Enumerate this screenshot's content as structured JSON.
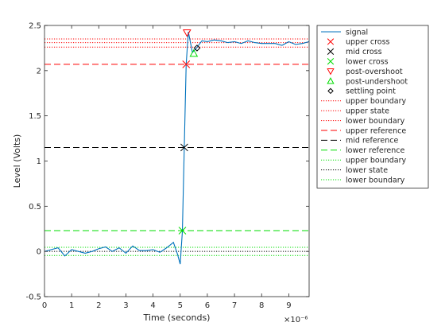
{
  "chart_data": {
    "type": "line",
    "xlabel": "Time (seconds)",
    "ylabel": "Level (Volts)",
    "x_exponent_label": "×10⁻⁶",
    "xlim": [
      0,
      9.75
    ],
    "ylim": [
      -0.5,
      2.5
    ],
    "x_ticks": [
      0,
      1,
      2,
      3,
      4,
      5,
      6,
      7,
      8,
      9
    ],
    "x_tick_labels": [
      "0",
      "1",
      "2",
      "3",
      "4",
      "5",
      "6",
      "7",
      "8",
      "9"
    ],
    "y_ticks": [
      -0.5,
      0,
      0.5,
      1,
      1.5,
      2,
      2.5
    ],
    "y_tick_labels": [
      "-0.5",
      "0",
      "0.5",
      "1",
      "1.5",
      "2",
      "2.5"
    ],
    "grid": false,
    "legend_position": "outside-right",
    "signal": {
      "name": "signal",
      "color": "#0072BD",
      "x": [
        0,
        0.25,
        0.5,
        0.75,
        1.0,
        1.25,
        1.5,
        1.75,
        2.0,
        2.25,
        2.5,
        2.75,
        3.0,
        3.25,
        3.5,
        3.75,
        4.0,
        4.25,
        4.5,
        4.75,
        4.9,
        5.0,
        5.08,
        5.15,
        5.22,
        5.3,
        5.45,
        5.6,
        5.8,
        6.0,
        6.25,
        6.5,
        6.75,
        7.0,
        7.25,
        7.5,
        7.75,
        8.0,
        8.25,
        8.5,
        8.75,
        9.0,
        9.25,
        9.5,
        9.75
      ],
      "y": [
        0.0,
        0.02,
        0.04,
        -0.05,
        0.02,
        0.0,
        -0.02,
        0.0,
        0.03,
        0.05,
        0.0,
        0.04,
        -0.02,
        0.06,
        0.01,
        0.01,
        0.02,
        -0.01,
        0.04,
        0.1,
        -0.03,
        -0.14,
        0.22,
        1.15,
        2.07,
        2.43,
        2.2,
        2.25,
        2.33,
        2.32,
        2.34,
        2.33,
        2.31,
        2.32,
        2.3,
        2.33,
        2.31,
        2.3,
        2.3,
        2.3,
        2.28,
        2.32,
        2.29,
        2.3,
        2.32
      ]
    },
    "markers": [
      {
        "name": "upper cross",
        "symbol": "x",
        "color": "#FF0000",
        "x": 5.22,
        "y": 2.07
      },
      {
        "name": "mid cross",
        "symbol": "x",
        "color": "#000000",
        "x": 5.15,
        "y": 1.15
      },
      {
        "name": "lower cross",
        "symbol": "x",
        "color": "#00DD00",
        "x": 5.08,
        "y": 0.23
      },
      {
        "name": "post-overshoot",
        "symbol": "triangle-down",
        "color": "#FF0000",
        "x": 5.25,
        "y": 2.42
      },
      {
        "name": "post-undershoot",
        "symbol": "triangle-up",
        "color": "#00DD00",
        "x": 5.5,
        "y": 2.19
      },
      {
        "name": "settling point",
        "symbol": "diamond",
        "color": "#000000",
        "x": 5.62,
        "y": 2.25
      }
    ],
    "hlines": [
      {
        "name": "upper boundary",
        "style": "dotted",
        "color": "#FF0000",
        "y": 2.35
      },
      {
        "name": "upper state",
        "style": "dotted",
        "color": "#FF0000",
        "y": 2.31
      },
      {
        "name": "lower boundary",
        "style": "dotted",
        "color": "#FF0000",
        "y": 2.26
      },
      {
        "name": "upper reference",
        "style": "dashed",
        "color": "#FF0000",
        "y": 2.07
      },
      {
        "name": "mid reference",
        "style": "dashed",
        "color": "#000000",
        "y": 1.15
      },
      {
        "name": "lower reference",
        "style": "dashed",
        "color": "#00DD00",
        "y": 0.23
      },
      {
        "name": "upper boundary",
        "style": "dotted",
        "color": "#00DD00",
        "y": 0.045
      },
      {
        "name": "lower state",
        "style": "dotted",
        "color": "#000000",
        "y": 0.0
      },
      {
        "name": "lower boundary",
        "style": "dotted",
        "color": "#00DD00",
        "y": -0.045
      }
    ]
  }
}
